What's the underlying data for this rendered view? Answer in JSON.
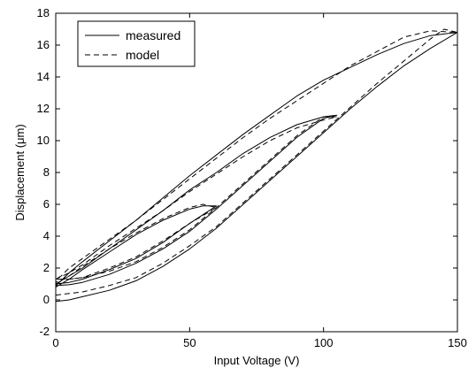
{
  "chart_data": {
    "type": "line",
    "title": "",
    "xlabel": "Input Voltage (V)",
    "ylabel": "Displacement (μm)",
    "xlim": [
      0,
      150
    ],
    "ylim": [
      -2,
      18
    ],
    "xticks": [
      0,
      50,
      100,
      150
    ],
    "yticks": [
      -2,
      0,
      2,
      4,
      6,
      8,
      10,
      12,
      14,
      16,
      18
    ],
    "grid": false,
    "legend": {
      "position": "top-left",
      "entries": [
        "measured",
        "model"
      ]
    },
    "series": [
      {
        "name": "measured",
        "style": "solid",
        "color": "#000000",
        "x": [
          0,
          5,
          10,
          20,
          30,
          40,
          50,
          60,
          70,
          80,
          90,
          100,
          110,
          120,
          130,
          140,
          150,
          140,
          130,
          120,
          110,
          100,
          90,
          80,
          70,
          60,
          50,
          40,
          30,
          20,
          10,
          5,
          2,
          0,
          5,
          10,
          20,
          30,
          40,
          50,
          60,
          70,
          80,
          90,
          100,
          105,
          100,
          90,
          80,
          70,
          60,
          50,
          40,
          30,
          20,
          10,
          5,
          0,
          5,
          10,
          20,
          30,
          40,
          50,
          60,
          55,
          50,
          40,
          30,
          20,
          10,
          5,
          0
        ],
        "y": [
          -0.1,
          0.0,
          0.2,
          0.6,
          1.2,
          2.1,
          3.2,
          4.5,
          6.0,
          7.5,
          9.0,
          10.5,
          12.0,
          13.4,
          14.7,
          15.8,
          16.8,
          16.6,
          16.1,
          15.4,
          14.6,
          13.8,
          12.8,
          11.6,
          10.4,
          9.1,
          7.8,
          6.4,
          5.0,
          3.7,
          2.4,
          1.7,
          1.2,
          0.9,
          0.95,
          1.1,
          1.6,
          2.3,
          3.2,
          4.3,
          5.7,
          7.2,
          8.7,
          10.2,
          11.4,
          11.6,
          11.5,
          11.0,
          10.2,
          9.2,
          8.0,
          6.9,
          5.6,
          4.4,
          3.2,
          2.0,
          1.5,
          1.0,
          1.1,
          1.3,
          1.9,
          2.6,
          3.6,
          4.8,
          5.9,
          5.9,
          5.7,
          5.0,
          4.1,
          3.0,
          1.9,
          1.3,
          0.8
        ]
      },
      {
        "name": "model",
        "style": "dashed",
        "color": "#000000",
        "x": [
          0,
          5,
          10,
          20,
          30,
          40,
          50,
          60,
          70,
          80,
          90,
          100,
          110,
          120,
          130,
          140,
          145,
          150,
          140,
          130,
          120,
          110,
          100,
          90,
          80,
          70,
          60,
          50,
          40,
          30,
          20,
          10,
          5,
          2,
          0,
          5,
          10,
          20,
          30,
          40,
          50,
          60,
          70,
          80,
          90,
          100,
          105,
          100,
          90,
          80,
          70,
          60,
          50,
          40,
          30,
          20,
          10,
          5,
          0,
          5,
          10,
          20,
          30,
          40,
          50,
          60,
          55,
          50,
          40,
          30,
          20,
          10,
          5,
          0
        ],
        "y": [
          0.3,
          0.4,
          0.5,
          0.9,
          1.4,
          2.3,
          3.4,
          4.6,
          6.1,
          7.6,
          9.1,
          10.6,
          12.1,
          13.6,
          15.0,
          16.4,
          17.0,
          16.8,
          16.9,
          16.5,
          15.6,
          14.7,
          13.6,
          12.5,
          11.4,
          10.2,
          8.9,
          7.6,
          6.3,
          5.0,
          3.8,
          2.6,
          2.0,
          1.5,
          1.3,
          1.3,
          1.4,
          1.8,
          2.4,
          3.3,
          4.4,
          5.8,
          7.3,
          8.8,
          10.3,
          11.5,
          11.5,
          11.3,
          10.8,
          10.0,
          9.0,
          7.9,
          6.8,
          5.6,
          4.5,
          3.4,
          2.2,
          1.7,
          1.3,
          1.3,
          1.4,
          2.0,
          2.7,
          3.7,
          4.8,
          5.8,
          6.0,
          5.8,
          5.1,
          4.2,
          3.2,
          2.1,
          1.5,
          1.1
        ]
      }
    ]
  }
}
